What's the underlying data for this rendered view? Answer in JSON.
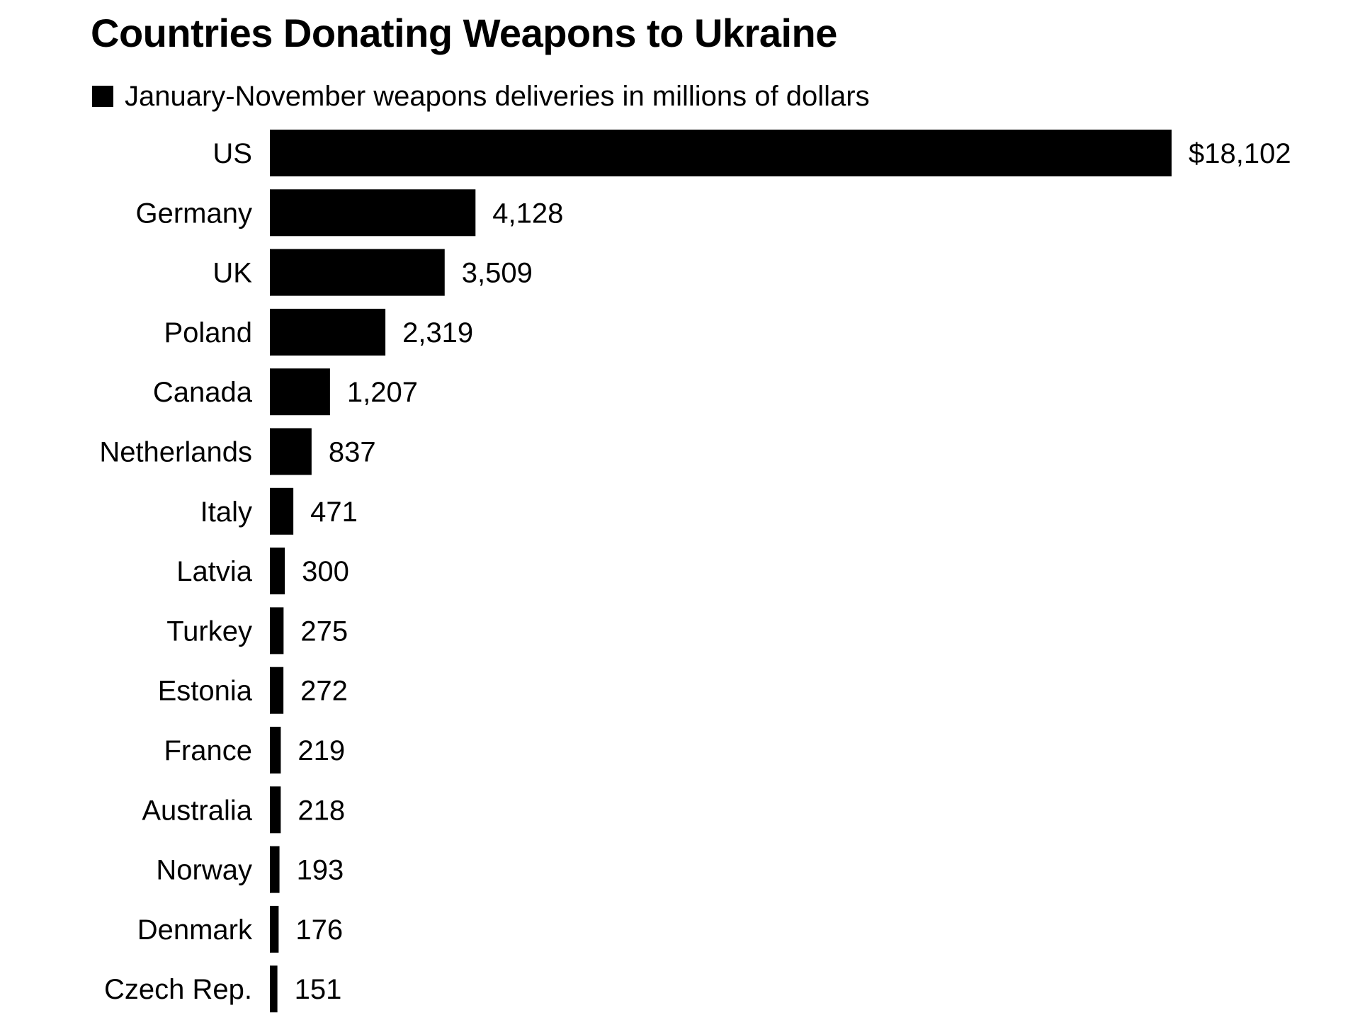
{
  "chart_data": {
    "type": "bar",
    "orientation": "horizontal",
    "title": "Countries Donating Weapons to Ukraine",
    "legend": "January-November weapons deliveries in millions of dollars",
    "legend_position": "top-left",
    "bar_color": "#000000",
    "grid": false,
    "categories": [
      "US",
      "Germany",
      "UK",
      "Poland",
      "Canada",
      "Netherlands",
      "Italy",
      "Latvia",
      "Turkey",
      "Estonia",
      "France",
      "Australia",
      "Norway",
      "Denmark",
      "Czech Rep."
    ],
    "values": [
      18102,
      4128,
      3509,
      2319,
      1207,
      837,
      471,
      300,
      275,
      272,
      219,
      218,
      193,
      176,
      151
    ],
    "value_labels": [
      "$18,102",
      "4,128",
      "3,509",
      "2,319",
      "1,207",
      "837",
      "471",
      "300",
      "275",
      "272",
      "219",
      "218",
      "193",
      "176",
      "151"
    ],
    "xlim": [
      0,
      18102
    ]
  }
}
